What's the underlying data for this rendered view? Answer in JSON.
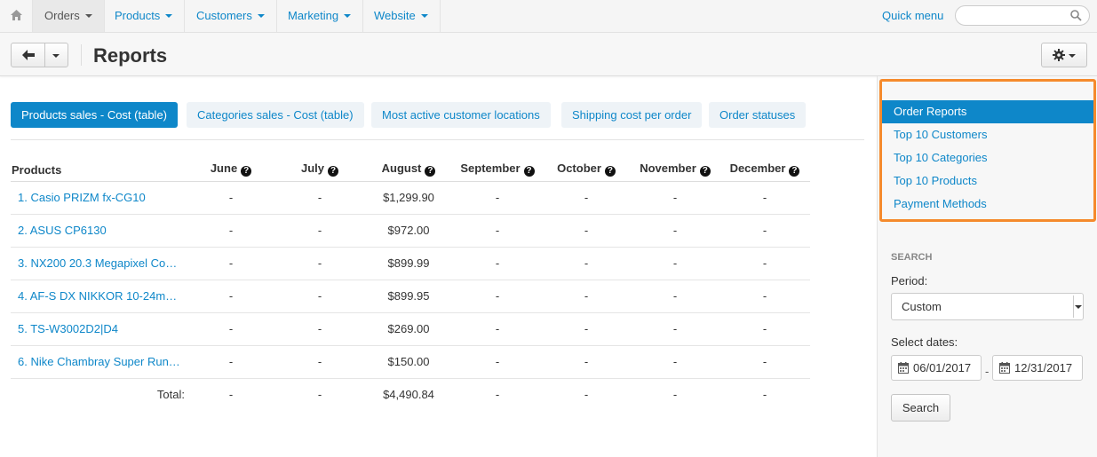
{
  "nav": {
    "items": [
      {
        "label": "Orders",
        "active": true
      },
      {
        "label": "Products"
      },
      {
        "label": "Customers"
      },
      {
        "label": "Marketing"
      },
      {
        "label": "Website"
      }
    ],
    "quick_menu": "Quick menu",
    "search_placeholder": ""
  },
  "header": {
    "title": "Reports"
  },
  "tabs": [
    {
      "label": "Products sales - Cost (table)",
      "active": true
    },
    {
      "label": "Categories sales - Cost (table)"
    },
    {
      "label": "Most active customer locations"
    },
    {
      "label": "Shipping cost per order"
    },
    {
      "label": "Order statuses"
    }
  ],
  "table": {
    "columns": [
      "Products",
      "June",
      "July",
      "August",
      "September",
      "October",
      "November",
      "December"
    ],
    "rows": [
      {
        "product": "1. Casio PRIZM fx-CG10",
        "values": [
          "-",
          "-",
          "$1,299.90",
          "-",
          "-",
          "-",
          "-"
        ]
      },
      {
        "product": "2. ASUS CP6130",
        "values": [
          "-",
          "-",
          "$972.00",
          "-",
          "-",
          "-",
          "-"
        ]
      },
      {
        "product": "3. NX200 20.3 Megapixel Co…",
        "values": [
          "-",
          "-",
          "$899.99",
          "-",
          "-",
          "-",
          "-"
        ]
      },
      {
        "product": "4. AF-S DX NIKKOR 10-24m…",
        "values": [
          "-",
          "-",
          "$899.95",
          "-",
          "-",
          "-",
          "-"
        ]
      },
      {
        "product": "5. TS-W3002D2|D4",
        "values": [
          "-",
          "-",
          "$269.00",
          "-",
          "-",
          "-",
          "-"
        ]
      },
      {
        "product": "6. Nike Chambray Super Run…",
        "values": [
          "-",
          "-",
          "$150.00",
          "-",
          "-",
          "-",
          "-"
        ]
      }
    ],
    "total": {
      "label": "Total:",
      "values": [
        "-",
        "-",
        "$4,490.84",
        "-",
        "-",
        "-",
        "-"
      ]
    }
  },
  "sidebar": {
    "menu": [
      {
        "label": "Order Reports",
        "active": true
      },
      {
        "label": "Top 10 Customers"
      },
      {
        "label": "Top 10 Categories"
      },
      {
        "label": "Top 10 Products"
      },
      {
        "label": "Payment Methods"
      }
    ],
    "search_heading": "Search",
    "period_label": "Period:",
    "period_value": "Custom",
    "dates_label": "Select dates:",
    "date_from": "06/01/2017",
    "date_to": "12/31/2017",
    "date_separator": "-",
    "search_button": "Search"
  },
  "colors": {
    "accent": "#0e87c9",
    "highlight_border": "#f58a2c"
  }
}
